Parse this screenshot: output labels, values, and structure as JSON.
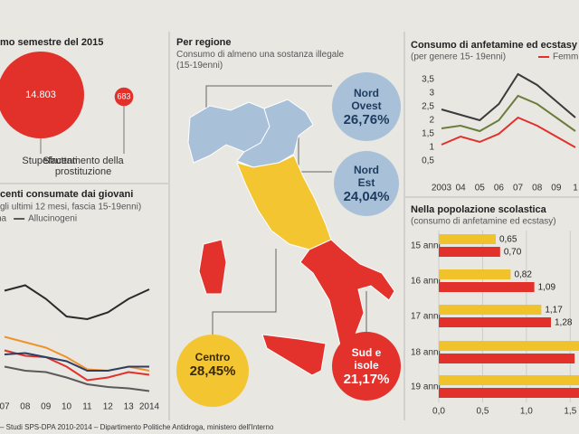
{
  "chart_data": [
    {
      "type": "bubble",
      "title": "mo semestre del 2015",
      "categories": [
        "Stupefacenti",
        "Sfruttamento della prostituzione"
      ],
      "values": [
        14803,
        683
      ],
      "value_labels": [
        "14.803",
        "683"
      ],
      "color": "#e2302b"
    },
    {
      "type": "line",
      "title": "centi consumate dai giovani",
      "subtitle": "gli ultimi 12 mesi, fascia 15-19enni)",
      "categories": [
        "07",
        "08",
        "09",
        "10",
        "11",
        "12",
        "13",
        "2014"
      ],
      "ylim": [
        0,
        10
      ],
      "series": [
        {
          "name": "na",
          "color": "#2b2b2b",
          "values": [
            7.9,
            8.3,
            7.3,
            6.0,
            5.8,
            6.3,
            7.3,
            8.0
          ]
        },
        {
          "name": "Allucinogeni",
          "color": "#5a5a5a",
          "values": [
            2.3,
            2.0,
            1.9,
            1.5,
            1.0,
            0.8,
            0.7,
            0.5
          ]
        },
        {
          "color": "#f0922b",
          "values": [
            4.5,
            4.1,
            3.7,
            3.0,
            2.1,
            2.0,
            2.3,
            2.0
          ]
        },
        {
          "color": "#e2302b",
          "values": [
            3.5,
            3.1,
            3.0,
            2.3,
            1.3,
            1.5,
            1.9,
            1.7
          ]
        },
        {
          "color": "#2c3e66",
          "values": [
            3.2,
            3.3,
            3.0,
            2.7,
            2.0,
            2.0,
            2.3,
            2.3
          ]
        }
      ]
    },
    {
      "type": "map",
      "title": "Per regione",
      "subtitle": "Consumo di almeno una sostanza illegale (15-19enni)",
      "categories": [
        "Nord Ovest",
        "Nord Est",
        "Centro",
        "Sud e isole"
      ],
      "values": [
        26.76,
        24.04,
        28.45,
        21.17
      ],
      "value_labels": [
        "26,76%",
        "24,04%",
        "28,45%",
        "21,17%"
      ],
      "colors": [
        "#a9c1d8",
        "#a9c1d8",
        "#f2c531",
        "#e3312c"
      ]
    },
    {
      "type": "line",
      "title": "Consumo di anfetamine ed ecstasy",
      "subtitle": "(per genere 15- 19enni)",
      "categories": [
        "2003",
        "04",
        "05",
        "06",
        "07",
        "08",
        "09",
        "1"
      ],
      "ylim": [
        0.3,
        3.8
      ],
      "yticks": [
        {
          "value": 3.5,
          "label": "3,5"
        },
        3,
        {
          "value": 2.5,
          "label": "2,5"
        },
        2,
        {
          "value": 1.5,
          "label": "1,5"
        },
        1,
        {
          "value": 0.5,
          "label": "0,5"
        }
      ],
      "series": [
        {
          "color": "#3a3a3a",
          "values": [
            2.4,
            2.2,
            2.0,
            2.6,
            3.7,
            3.3,
            2.7,
            2.1
          ]
        },
        {
          "color": "#6b7d3a",
          "values": [
            1.7,
            1.8,
            1.6,
            2.0,
            2.9,
            2.6,
            2.1,
            1.6
          ]
        },
        {
          "name": "Femmine",
          "color": "#e2302b",
          "values": [
            1.1,
            1.4,
            1.2,
            1.5,
            2.1,
            1.8,
            1.4,
            1.0
          ]
        }
      ]
    },
    {
      "type": "hbar",
      "title": "Nella popolazione scolastica",
      "subtitle": "(consumo di anfetamine ed ecstasy)",
      "categories": [
        "15 anni",
        "16 anni",
        "17 anni",
        "18 anni",
        "19 anni"
      ],
      "xlim": [
        0,
        1.6
      ],
      "xticks": [
        {
          "value": 0,
          "label": "0,0"
        },
        {
          "value": 0.5,
          "label": "0,5"
        },
        {
          "value": 1,
          "label": "1,0"
        },
        {
          "value": 1.5,
          "label": "1,5"
        }
      ],
      "series": [
        {
          "color": "#f0c22b",
          "values": [
            0.65,
            0.82,
            1.17,
            1.65,
            1.7
          ],
          "value_labels": [
            "0,65",
            "0,82",
            "1,17",
            null,
            null
          ]
        },
        {
          "color": "#e2302b",
          "values": [
            0.7,
            1.09,
            1.28,
            1.55,
            1.6
          ],
          "value_labels": [
            "0,70",
            "1,09",
            "1,28",
            null,
            null
          ]
        }
      ]
    }
  ],
  "source": "– Studi SPS-DPA 2010-2014 – Dipartimento Politiche Antidroga, ministero dell'Interno"
}
